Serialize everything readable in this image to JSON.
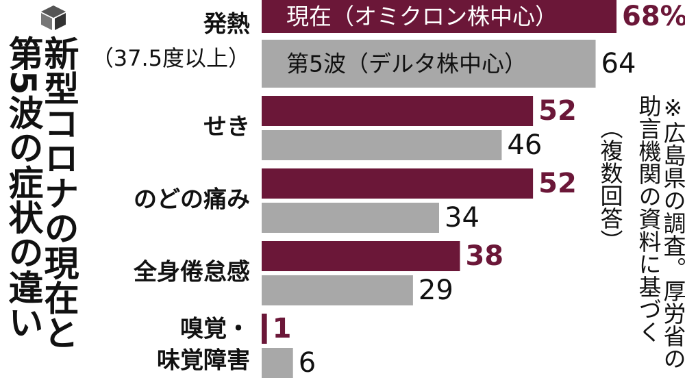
{
  "chart_data": {
    "type": "bar",
    "orientation": "horizontal",
    "title": "新型コロナの現在と第5波の症状の違い",
    "categories": [
      [
        "発熱",
        "（37.5度以上）"
      ],
      [
        "せき"
      ],
      [
        "のどの痛み"
      ],
      [
        "全身倦怠感"
      ],
      [
        "嗅覚・",
        "味覚障害"
      ]
    ],
    "series": [
      {
        "name": "現在（オミクロン株中心）",
        "color": "#6b1738",
        "values": [
          68,
          52,
          52,
          38,
          1
        ],
        "value_labels": [
          "68%",
          "52",
          "52",
          "38",
          "1"
        ]
      },
      {
        "name": "第5波（デルタ株中心）",
        "color": "#a8a8a8",
        "values": [
          64,
          46,
          34,
          29,
          6
        ]
      }
    ],
    "notes": [
      "※広島県の調査。厚労省の助言機関の資料に基づく",
      "（複数回答）"
    ]
  }
}
